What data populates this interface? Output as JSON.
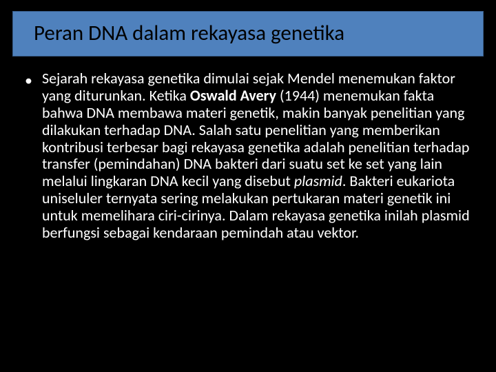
{
  "slide": {
    "title": "Peran DNA dalam rekayasa genetika",
    "bullet_marker": "•",
    "body_segments": [
      {
        "t": "Sejarah rekayasa genetika dimulai sejak Mendel menemukan faktor yang diturunkan. Ketika "
      },
      {
        "t": "Oswald Avery",
        "bold": true
      },
      {
        "t": " (1944) menemukan fakta bahwa DNA membawa materi genetik, makin banyak penelitian yang dilakukan terhadap DNA. Salah satu penelitian yang memberikan kontribusi terbesar bagi rekayasa genetika adalah penelitian terhadap transfer (pemindahan) DNA bakteri dari suatu set ke set yang lain melalui lingkaran DNA kecil yang disebut "
      },
      {
        "t": "plasmid",
        "italic": true
      },
      {
        "t": ". Bakteri eukariota uniseluler ternyata sering melakukan pertukaran materi genetik ini untuk memelihara ciri-cirinya. Dalam rekayasa genetika inilah plasmid berfungsi sebagai kendaraan pemindah atau vektor."
      }
    ]
  },
  "style": {
    "background_color": "#000000",
    "title_box_fill": "#4f81bd",
    "title_box_border": "#385d8a",
    "title_text_color": "#000000",
    "title_fontsize": 31,
    "body_text_color": "#ffffff",
    "body_fontsize": 22,
    "body_line_height": 1.13,
    "font_family": "Calibri",
    "slide_width": 720,
    "slide_height": 540
  }
}
